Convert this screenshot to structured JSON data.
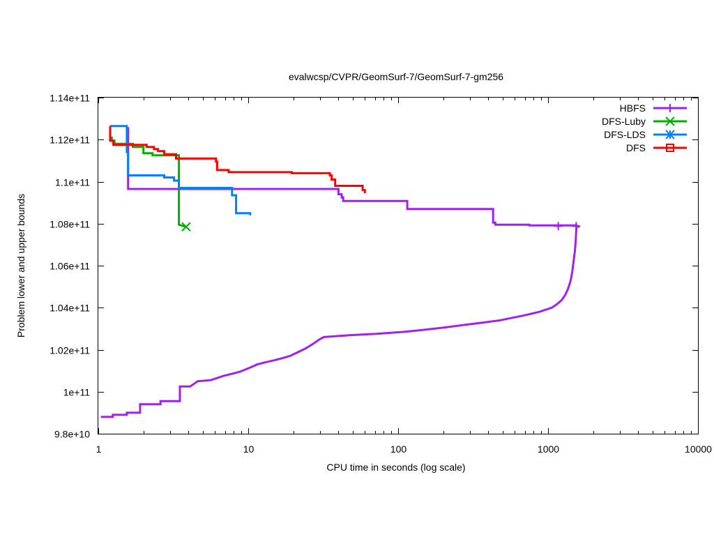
{
  "chart_data": {
    "type": "line",
    "title": "evalwcsp/CVPR/GeomSurf-7/GeomSurf-7-gm256",
    "xlabel": "CPU time in seconds (log scale)",
    "ylabel": "Problem lower and upper bounds",
    "xscale": "log",
    "xlim": [
      1,
      10000
    ],
    "ylim": [
      98000000000,
      114000000000
    ],
    "grid": false,
    "legend_position": "top-right",
    "x_ticks": [
      {
        "value": 1,
        "label": "1"
      },
      {
        "value": 10,
        "label": "10"
      },
      {
        "value": 100,
        "label": "100"
      },
      {
        "value": 1000,
        "label": "1000"
      },
      {
        "value": 10000,
        "label": "10000"
      }
    ],
    "y_ticks": [
      {
        "value": 98000000000,
        "label": "9.8e+10"
      },
      {
        "value": 100000000000,
        "label": "1e+11"
      },
      {
        "value": 102000000000,
        "label": "1.02e+11"
      },
      {
        "value": 104000000000,
        "label": "1.04e+11"
      },
      {
        "value": 106000000000,
        "label": "1.06e+11"
      },
      {
        "value": 108000000000,
        "label": "1.08e+11"
      },
      {
        "value": 110000000000,
        "label": "1.1e+11"
      },
      {
        "value": 112000000000,
        "label": "1.12e+11"
      },
      {
        "value": 114000000000,
        "label": "1.14e+11"
      }
    ],
    "series": [
      {
        "name": "HBFS",
        "color": "#a020f0",
        "marker": "plus",
        "segments": [
          {
            "role": "upper bound",
            "points": [
              [
                1.58,
                112600000000
              ],
              [
                1.58,
                109650000000
              ],
              [
                40,
                109650000000
              ],
              [
                40,
                109400000000
              ],
              [
                42,
                109400000000
              ],
              [
                42,
                109250000000
              ],
              [
                43,
                109250000000
              ],
              [
                43,
                109080000000
              ],
              [
                115,
                109080000000
              ],
              [
                115,
                108700000000
              ],
              [
                430,
                108700000000
              ],
              [
                430,
                108050000000
              ],
              [
                445,
                108050000000
              ],
              [
                445,
                107950000000
              ],
              [
                750,
                107950000000
              ],
              [
                750,
                107920000000
              ],
              [
                1550,
                107920000000
              ],
              [
                1620,
                107830000000
              ]
            ]
          },
          {
            "role": "lower bound",
            "points": [
              [
                1.04,
                98800000000
              ],
              [
                1.25,
                98800000000
              ],
              [
                1.25,
                98900000000
              ],
              [
                1.55,
                98900000000
              ],
              [
                1.55,
                99000000000
              ],
              [
                1.9,
                99000000000
              ],
              [
                1.9,
                99400000000
              ],
              [
                2.6,
                99400000000
              ],
              [
                2.6,
                99550000000
              ],
              [
                3.5,
                99550000000
              ],
              [
                3.5,
                100250000000
              ],
              [
                4.1,
                100250000000
              ],
              [
                4.3,
                100350000000
              ],
              [
                4.6,
                100500000000
              ],
              [
                5.6,
                100550000000
              ],
              [
                6.2,
                100650000000
              ],
              [
                6.8,
                100750000000
              ],
              [
                7.8,
                100850000000
              ],
              [
                8.8,
                100950000000
              ],
              [
                10.3,
                101150000000
              ],
              [
                11.5,
                101300000000
              ],
              [
                13,
                101400000000
              ],
              [
                15,
                101500000000
              ],
              [
                17,
                101600000000
              ],
              [
                19,
                101700000000
              ],
              [
                21,
                101850000000
              ],
              [
                24,
                102050000000
              ],
              [
                26,
                102200000000
              ],
              [
                28,
                102350000000
              ],
              [
                30,
                102500000000
              ],
              [
                32,
                102600000000
              ],
              [
                40,
                102650000000
              ],
              [
                50,
                102700000000
              ],
              [
                70,
                102750000000
              ],
              [
                110,
                102850000000
              ],
              [
                150,
                102950000000
              ],
              [
                200,
                103050000000
              ],
              [
                290,
                103200000000
              ],
              [
                380,
                103300000000
              ],
              [
                480,
                103400000000
              ],
              [
                560,
                103500000000
              ],
              [
                660,
                103600000000
              ],
              [
                760,
                103700000000
              ],
              [
                870,
                103800000000
              ],
              [
                960,
                103900000000
              ],
              [
                1060,
                104000000000
              ],
              [
                1140,
                104150000000
              ],
              [
                1230,
                104350000000
              ],
              [
                1300,
                104600000000
              ],
              [
                1360,
                104900000000
              ],
              [
                1410,
                105250000000
              ],
              [
                1450,
                105700000000
              ],
              [
                1480,
                106200000000
              ],
              [
                1510,
                106700000000
              ],
              [
                1530,
                107200000000
              ],
              [
                1540,
                107600000000
              ],
              [
                1550,
                107920000000
              ]
            ]
          }
        ],
        "markers": [
          [
            1170,
            107880000000
          ],
          [
            1540,
            107880000000
          ]
        ]
      },
      {
        "name": "DFS-Luby",
        "color": "#00b000",
        "marker": "x",
        "segments": [
          {
            "role": "upper bound",
            "points": [
              [
                1.2,
                112650000000
              ],
              [
                1.2,
                112100000000
              ],
              [
                1.23,
                112100000000
              ],
              [
                1.23,
                111950000000
              ],
              [
                1.28,
                111950000000
              ],
              [
                1.28,
                111800000000
              ],
              [
                1.7,
                111800000000
              ],
              [
                1.7,
                111650000000
              ],
              [
                2.0,
                111650000000
              ],
              [
                2.0,
                111350000000
              ],
              [
                2.3,
                111350000000
              ],
              [
                2.3,
                111250000000
              ],
              [
                3.45,
                111250000000
              ],
              [
                3.45,
                107950000000
              ],
              [
                3.85,
                107850000000
              ]
            ]
          }
        ],
        "markers": [
          [
            3.85,
            107850000000
          ]
        ]
      },
      {
        "name": "DFS-LDS",
        "color": "#0080ff",
        "marker": "star",
        "segments": [
          {
            "role": "upper bound",
            "points": [
              [
                1.2,
                112650000000
              ],
              [
                1.55,
                112650000000
              ],
              [
                1.55,
                111400000000
              ],
              [
                1.58,
                111400000000
              ],
              [
                1.58,
                110300000000
              ],
              [
                2.75,
                110300000000
              ],
              [
                2.75,
                110200000000
              ],
              [
                3.2,
                110200000000
              ],
              [
                3.2,
                110050000000
              ],
              [
                3.45,
                110050000000
              ],
              [
                3.45,
                109700000000
              ],
              [
                7.8,
                109700000000
              ],
              [
                7.8,
                109350000000
              ],
              [
                8.3,
                109350000000
              ],
              [
                8.3,
                108500000000
              ],
              [
                10.3,
                108500000000
              ],
              [
                10.3,
                108400000000
              ]
            ]
          }
        ]
      },
      {
        "name": "DFS",
        "color": "#ff0000",
        "marker": "square",
        "segments": [
          {
            "role": "upper bound",
            "points": [
              [
                1.2,
                112650000000
              ],
              [
                1.2,
                111950000000
              ],
              [
                1.26,
                111950000000
              ],
              [
                1.26,
                111750000000
              ],
              [
                2.1,
                111750000000
              ],
              [
                2.1,
                111650000000
              ],
              [
                2.35,
                111650000000
              ],
              [
                2.35,
                111550000000
              ],
              [
                2.5,
                111550000000
              ],
              [
                2.5,
                111450000000
              ],
              [
                2.75,
                111450000000
              ],
              [
                2.75,
                111300000000
              ],
              [
                3.3,
                111300000000
              ],
              [
                3.3,
                111100000000
              ],
              [
                6.1,
                111100000000
              ],
              [
                6.1,
                110950000000
              ],
              [
                6.2,
                110950000000
              ],
              [
                6.2,
                110550000000
              ],
              [
                7.4,
                110550000000
              ],
              [
                7.4,
                110450000000
              ],
              [
                19.5,
                110450000000
              ],
              [
                19.5,
                110400000000
              ],
              [
                35,
                110400000000
              ],
              [
                35,
                110300000000
              ],
              [
                36,
                110300000000
              ],
              [
                36,
                110100000000
              ],
              [
                38,
                110100000000
              ],
              [
                38,
                109800000000
              ],
              [
                58,
                109800000000
              ],
              [
                58,
                109600000000
              ],
              [
                60,
                109600000000
              ],
              [
                60,
                109450000000
              ]
            ]
          }
        ]
      }
    ]
  }
}
